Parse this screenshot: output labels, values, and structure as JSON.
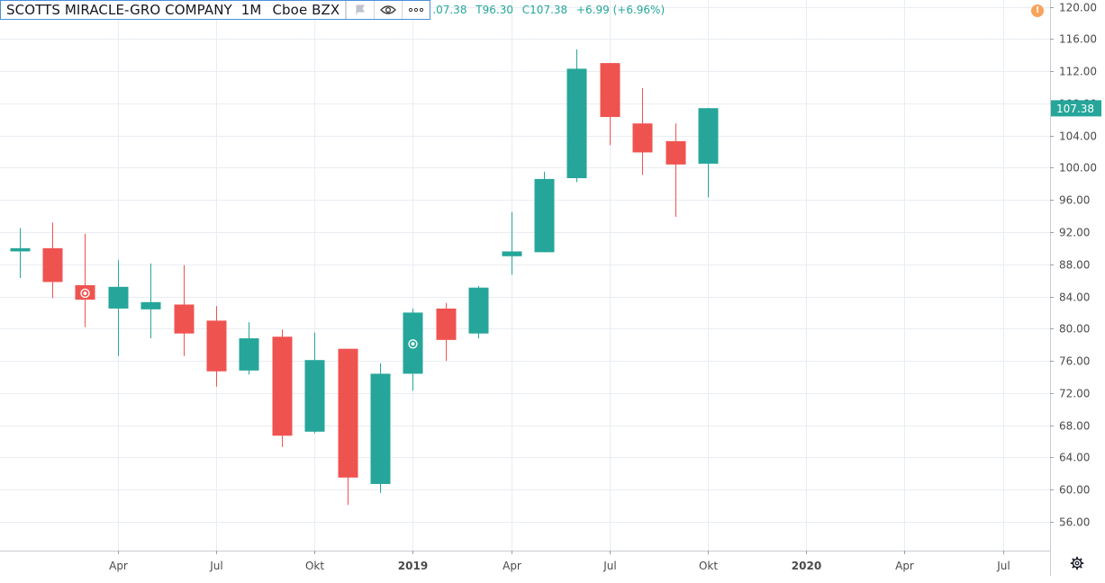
{
  "legend": {
    "symbol": "SCOTTS MIRACLE-GRO COMPANY",
    "interval": "1M",
    "exchange": "Cboe BZX",
    "ohlc_text": [
      ".07.38",
      "Т96.30",
      "C107.38",
      "+6.99 (+6.96%)"
    ]
  },
  "icons": {
    "flag": "flag-icon",
    "eye": "eye-icon",
    "more": "more-icon",
    "alert": "alert-icon",
    "settings": "gear-icon"
  },
  "colors": {
    "up": "#26a69a",
    "down": "#ef5350",
    "grid": "#e9edf2",
    "axis_text": "#4a4a4a",
    "price_label_bg": "#26a69a"
  },
  "chart_data": {
    "type": "candlestick",
    "interval": "1M",
    "ylim": [
      52,
      120
    ],
    "y_ticks": [
      56,
      60,
      64,
      68,
      72,
      76,
      80,
      84,
      88,
      92,
      96,
      100,
      104,
      108,
      112,
      116,
      120
    ],
    "x_ticks": [
      {
        "label": "Apr",
        "month": 3,
        "bold": false
      },
      {
        "label": "Jul",
        "month": 6,
        "bold": false
      },
      {
        "label": "Okt",
        "month": 9,
        "bold": false
      },
      {
        "label": "2019",
        "month": 12,
        "bold": true
      },
      {
        "label": "Apr",
        "month": 15,
        "bold": false
      },
      {
        "label": "Jul",
        "month": 18,
        "bold": false
      },
      {
        "label": "Okt",
        "month": 21,
        "bold": false
      },
      {
        "label": "2020",
        "month": 24,
        "bold": true
      },
      {
        "label": "Apr",
        "month": 27,
        "bold": false
      },
      {
        "label": "Jul",
        "month": 30,
        "bold": false
      }
    ],
    "candles": [
      {
        "month": 0,
        "open": 89.6,
        "high": 92.5,
        "low": 86.3,
        "close": 90.0
      },
      {
        "month": 1,
        "open": 90.0,
        "high": 93.2,
        "low": 83.8,
        "close": 85.8
      },
      {
        "month": 2,
        "open": 85.4,
        "high": 91.8,
        "low": 80.2,
        "close": 83.6
      },
      {
        "month": 3,
        "open": 82.5,
        "high": 88.5,
        "low": 76.6,
        "close": 85.2
      },
      {
        "month": 4,
        "open": 82.4,
        "high": 88.1,
        "low": 78.8,
        "close": 83.3
      },
      {
        "month": 5,
        "open": 83.0,
        "high": 87.9,
        "low": 76.6,
        "close": 79.4
      },
      {
        "month": 6,
        "open": 81.0,
        "high": 82.8,
        "low": 72.8,
        "close": 74.7
      },
      {
        "month": 7,
        "open": 74.8,
        "high": 80.8,
        "low": 74.3,
        "close": 78.8
      },
      {
        "month": 8,
        "open": 79.0,
        "high": 79.9,
        "low": 65.3,
        "close": 66.7
      },
      {
        "month": 9,
        "open": 67.2,
        "high": 79.5,
        "low": 67.0,
        "close": 76.1
      },
      {
        "month": 10,
        "open": 77.5,
        "high": 77.5,
        "low": 58.1,
        "close": 61.5
      },
      {
        "month": 11,
        "open": 60.7,
        "high": 75.7,
        "low": 59.6,
        "close": 74.4
      },
      {
        "month": 12,
        "open": 74.4,
        "high": 82.5,
        "low": 72.3,
        "close": 82.0
      },
      {
        "month": 13,
        "open": 82.5,
        "high": 83.2,
        "low": 76.0,
        "close": 78.6
      },
      {
        "month": 14,
        "open": 79.4,
        "high": 85.3,
        "low": 78.8,
        "close": 85.1
      },
      {
        "month": 15,
        "open": 89.0,
        "high": 94.5,
        "low": 86.7,
        "close": 89.6
      },
      {
        "month": 16,
        "open": 89.5,
        "high": 99.5,
        "low": 89.5,
        "close": 98.6
      },
      {
        "month": 17,
        "open": 98.7,
        "high": 114.7,
        "low": 98.2,
        "close": 112.3
      },
      {
        "month": 18,
        "open": 113.0,
        "high": 113.0,
        "low": 102.8,
        "close": 106.3
      },
      {
        "month": 19,
        "open": 105.5,
        "high": 109.9,
        "low": 99.1,
        "close": 101.9
      },
      {
        "month": 20,
        "open": 103.3,
        "high": 105.5,
        "low": 93.9,
        "close": 100.4
      },
      {
        "month": 21,
        "open": 100.5,
        "high": 107.4,
        "low": 96.3,
        "close": 107.4
      }
    ],
    "event_markers": [
      {
        "month": 2,
        "price": 84.4
      },
      {
        "month": 12,
        "price": 78.1
      }
    ],
    "last_price": {
      "value": 107.38,
      "label": "107.38"
    },
    "grid": true
  }
}
